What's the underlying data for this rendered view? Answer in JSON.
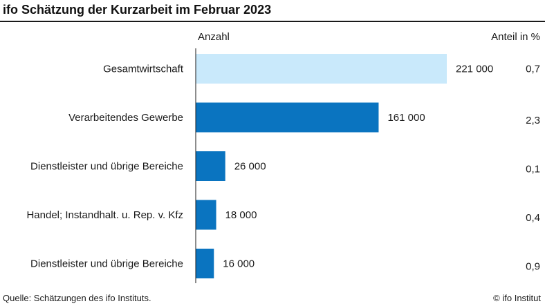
{
  "header": {
    "title": "ifo Schätzung der Kurzarbeit im Februar 2023"
  },
  "columns": {
    "count_label": "Anzahl",
    "share_label": "Anteil in %"
  },
  "footer": {
    "source": "Quelle: Schätzungen des ifo Instituts.",
    "copyright": "© ifo Institut"
  },
  "colors": {
    "highlight": "#c9e9fb",
    "bar": "#0a74c0",
    "axis": "#1a1a1a"
  },
  "chart_data": {
    "type": "bar",
    "orientation": "horizontal",
    "title": "ifo Schätzung der Kurzarbeit im Februar 2023",
    "categories": [
      "Gesamtwirtschaft",
      "Verarbeitendes Gewerbe",
      "Dienstleister und übrige Bereiche",
      "Handel; Instandhalt. u. Rep. v. Kfz",
      "Dienstleister und übrige Bereiche"
    ],
    "values": [
      221000,
      161000,
      26000,
      18000,
      16000
    ],
    "value_labels": [
      "221 000",
      "161 000",
      "26 000",
      "18 000",
      "16 000"
    ],
    "shares": [
      "0,7",
      "2,3",
      "0,1",
      "0,4",
      "0,9"
    ],
    "highlighted_index": 0,
    "xlabel": "Anzahl",
    "share_header": "Anteil in %",
    "grid": false,
    "legend": "none"
  }
}
